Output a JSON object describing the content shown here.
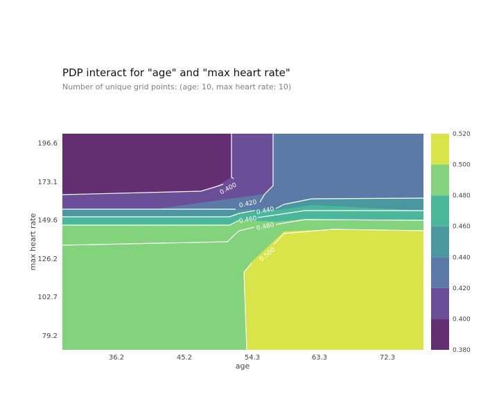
{
  "chart_data": {
    "type": "heatmap",
    "subtype": "filled-contour",
    "title": "PDP interact for \"age\" and \"max heart rate\"",
    "subtitle": "Number of unique grid points: (age: 10, max heart rate: 10)",
    "xlabel": "age",
    "ylabel": "max heart rate",
    "xticks": [
      "36.2",
      "45.2",
      "54.3",
      "63.3",
      "72.3"
    ],
    "yticks": [
      "196.6",
      "173.1",
      "149.6",
      "126.2",
      "102.7",
      "79.2"
    ],
    "colorbar": {
      "levels": [
        0.38,
        0.4,
        0.42,
        0.44,
        0.46,
        0.48,
        0.5,
        0.52
      ],
      "tick_labels": [
        "0.380",
        "0.400",
        "0.420",
        "0.440",
        "0.460",
        "0.480",
        "0.500",
        "0.520"
      ],
      "colors": [
        "#642e72",
        "#6a4e98",
        "#5b7aa6",
        "#4a97a0",
        "#4bb79a",
        "#82d37b",
        "#d8e447"
      ]
    },
    "contour_labels": [
      "0.400",
      "0.420",
      "0.440",
      "0.460",
      "0.480",
      "0.500"
    ],
    "regions": [
      {
        "range": "0.380-0.400",
        "area": "low age, high max heart rate"
      },
      {
        "range": "0.400-0.420",
        "area": "mid age, high max heart rate"
      },
      {
        "range": "0.420-0.440",
        "area": "high age, high max heart rate"
      },
      {
        "range": "0.480-0.500",
        "area": "low age, low max heart rate"
      },
      {
        "range": "0.500-0.520",
        "area": "high age, low max heart rate"
      }
    ]
  }
}
